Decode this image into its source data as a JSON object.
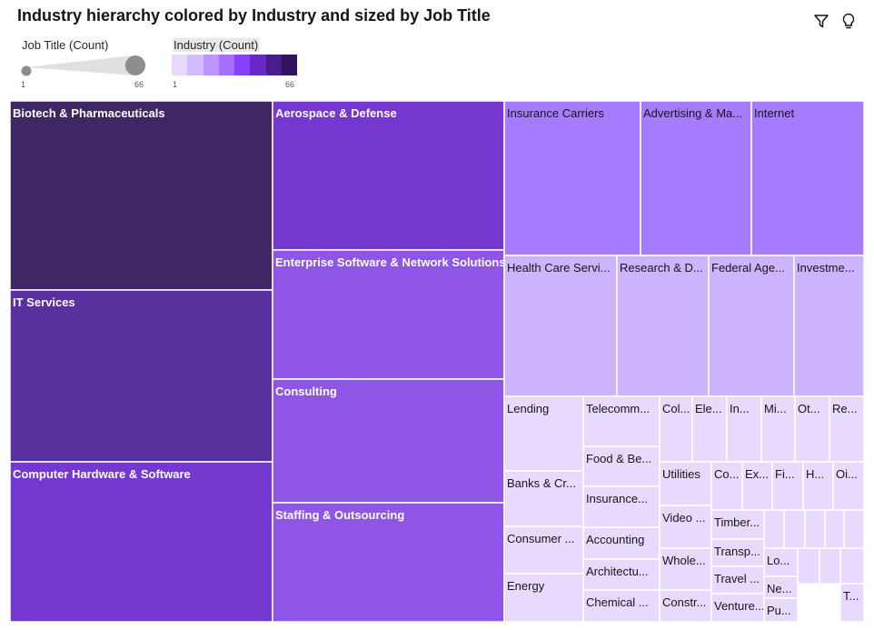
{
  "header": {
    "title": "Industry hierarchy colored by Industry and sized by Job Title"
  },
  "toolbar": {
    "filter_icon": "filter-icon",
    "insight_icon": "lightbulb-icon"
  },
  "legend": {
    "size": {
      "label": "Job Title (Count)",
      "min": "1",
      "max": "66"
    },
    "color": {
      "label": "Industry (Count)",
      "min": "1",
      "max": "66",
      "swatches": [
        "#e8daff",
        "#d4bbff",
        "#be95ff",
        "#a56eff",
        "#8a3ffc",
        "#6929c4",
        "#491d8b",
        "#31135e"
      ]
    }
  },
  "chart_data": {
    "type": "treemap",
    "size_measure": "Job Title (Count)",
    "color_measure": "Industry (Count)",
    "items": [
      {
        "label": "Biotech & Pharmaceuticals"
      },
      {
        "label": "IT Services"
      },
      {
        "label": "Computer Hardware & Software"
      },
      {
        "label": "Aerospace & Defense"
      },
      {
        "label": "Enterprise Software & Network Solutions"
      },
      {
        "label": "Consulting"
      },
      {
        "label": "Staffing & Outsourcing"
      },
      {
        "label": "Insurance Carriers"
      },
      {
        "label": "Advertising & Ma..."
      },
      {
        "label": "Internet"
      },
      {
        "label": "Health Care Servi..."
      },
      {
        "label": "Research & D..."
      },
      {
        "label": "Federal Age..."
      },
      {
        "label": "Investme..."
      },
      {
        "label": "Lending"
      },
      {
        "label": "Banks & Cr..."
      },
      {
        "label": "Consumer ..."
      },
      {
        "label": "Energy"
      },
      {
        "label": "Telecomm..."
      },
      {
        "label": "Food & Be..."
      },
      {
        "label": "Insurance..."
      },
      {
        "label": "Accounting"
      },
      {
        "label": "Architectu..."
      },
      {
        "label": "Chemical ..."
      },
      {
        "label": "Col..."
      },
      {
        "label": "Ele..."
      },
      {
        "label": "In..."
      },
      {
        "label": "Mi..."
      },
      {
        "label": "Ot..."
      },
      {
        "label": "Re..."
      },
      {
        "label": "Utilities"
      },
      {
        "label": "Co..."
      },
      {
        "label": "Ex..."
      },
      {
        "label": "Fi..."
      },
      {
        "label": "H..."
      },
      {
        "label": "Oi..."
      },
      {
        "label": "Video ..."
      },
      {
        "label": "Timber..."
      },
      {
        "label": "Transp..."
      },
      {
        "label": "Travel ..."
      },
      {
        "label": "Venture..."
      },
      {
        "label": "Whole..."
      },
      {
        "label": "Constr..."
      },
      {
        "label": "Lo..."
      },
      {
        "label": "Ne..."
      },
      {
        "label": "Pu..."
      },
      {
        "label": "T..."
      },
      {
        "label": ""
      },
      {
        "label": ""
      },
      {
        "label": ""
      },
      {
        "label": ""
      },
      {
        "label": ""
      },
      {
        "label": ""
      },
      {
        "label": ""
      },
      {
        "label": ""
      },
      {
        "label": ""
      }
    ]
  }
}
